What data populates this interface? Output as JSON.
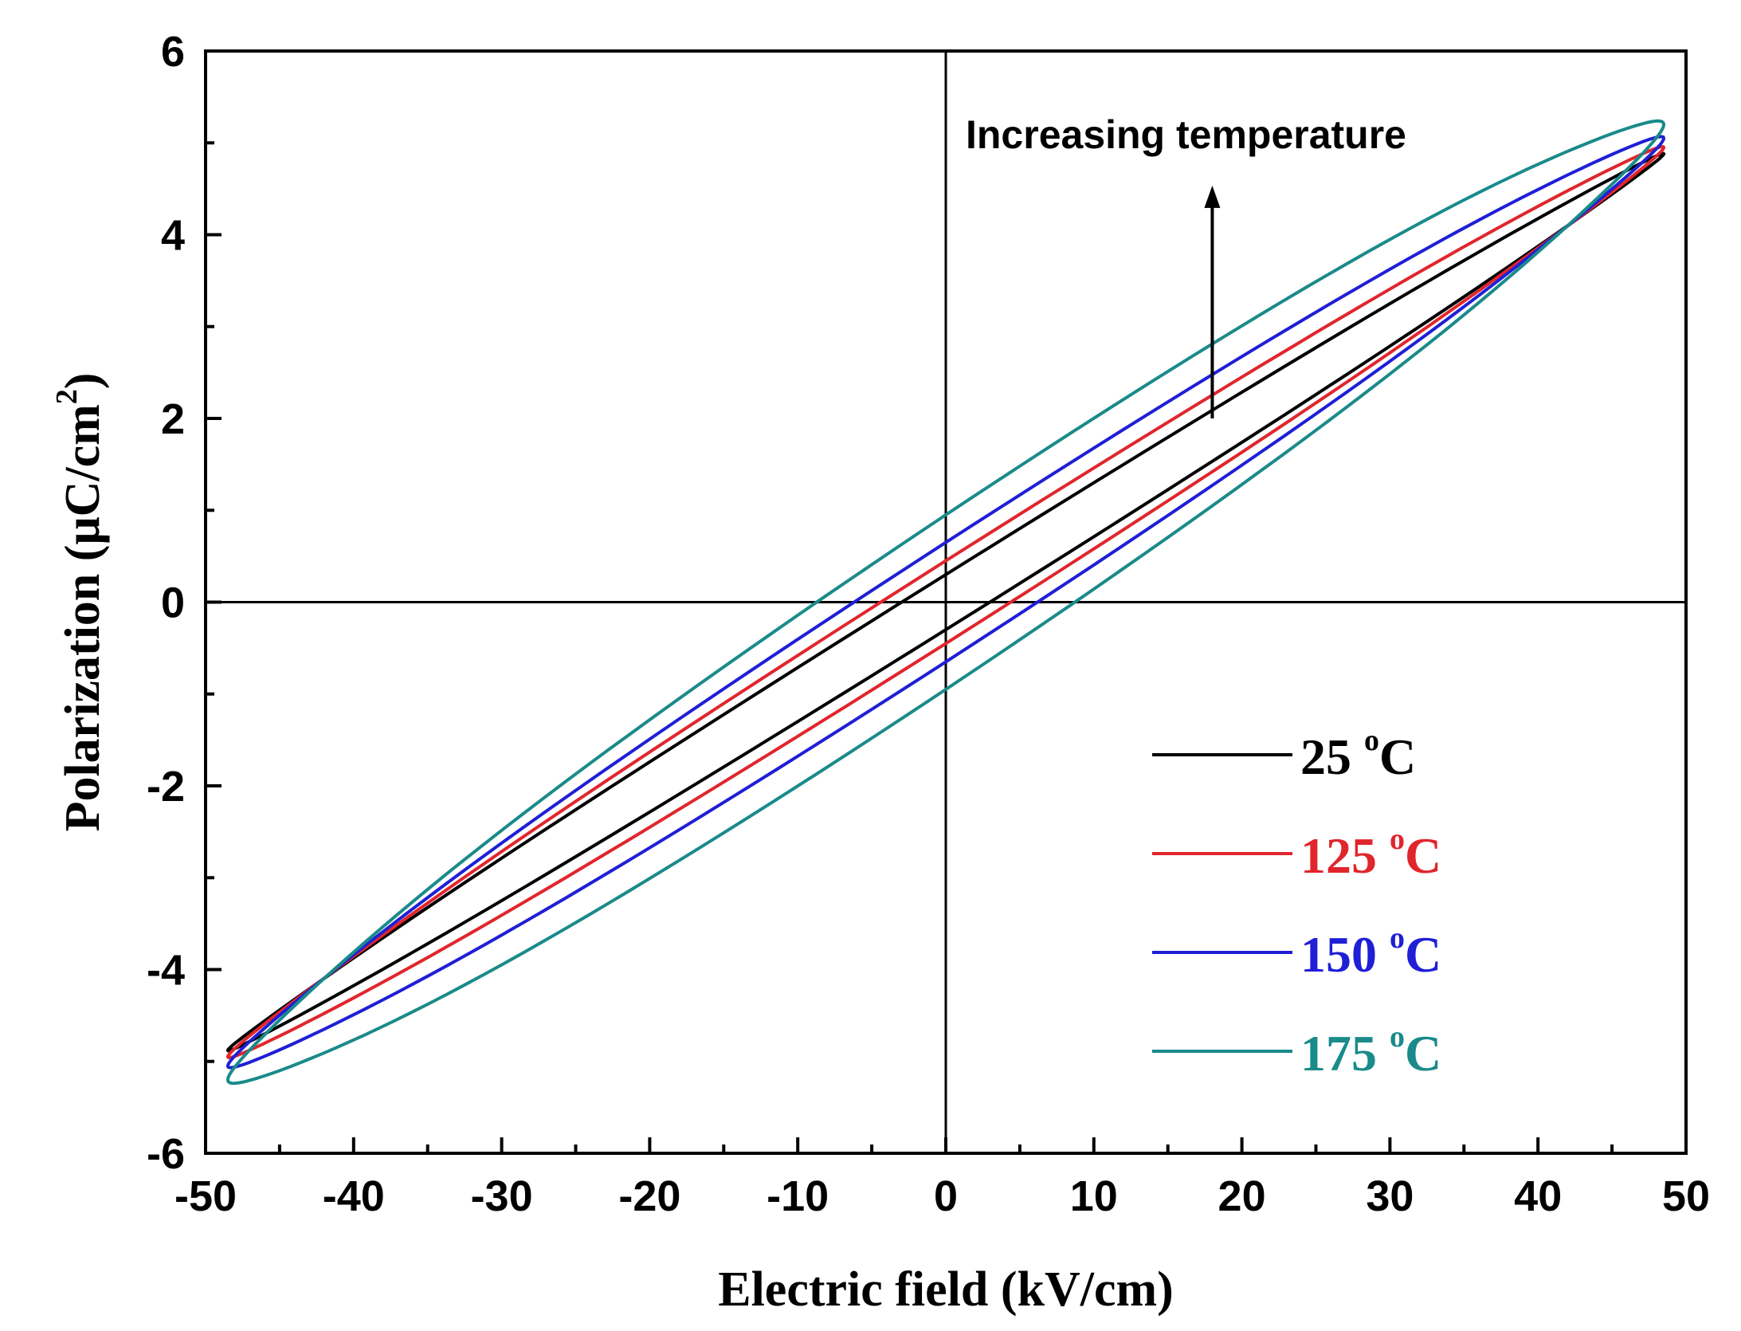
{
  "chart_data": {
    "type": "line",
    "title": "",
    "xlabel": "Electric field (kV/cm)",
    "ylabel_prefix": "Polarization (μC/cm",
    "ylabel_sup": "2",
    "ylabel_suffix": ")",
    "xlim": [
      -50,
      50
    ],
    "ylim": [
      -6,
      6
    ],
    "xticks": [
      -50,
      -40,
      -30,
      -20,
      -10,
      0,
      10,
      20,
      30,
      40,
      50
    ],
    "yticks": [
      -6,
      -4,
      -2,
      0,
      2,
      4,
      6
    ],
    "xtick_labels": [
      "-50",
      "-40",
      "-30",
      "-20",
      "-10",
      "0",
      "10",
      "20",
      "30",
      "40",
      "50"
    ],
    "ytick_labels": [
      "-6",
      "-4",
      "-2",
      "0",
      "2",
      "4",
      "6"
    ],
    "x_zero_line": true,
    "y_zero_line": true,
    "annotation": {
      "text": "Increasing temperature",
      "arrow_from": [
        18,
        2.0
      ],
      "arrow_to": [
        18,
        4.5
      ]
    },
    "legend_position": "lower-right",
    "series": [
      {
        "name": "25",
        "label_num": "25 ",
        "label_sup": "o",
        "label_unit": "C",
        "color": "#000000",
        "e_max": 48.5,
        "p_max": 4.88,
        "remanent": 0.3,
        "coercive": 2.8
      },
      {
        "name": "125",
        "label_num": "125 ",
        "label_sup": "o",
        "label_unit": "C",
        "color": "#e0262c",
        "e_max": 48.5,
        "p_max": 4.95,
        "remanent": 0.45,
        "coercive": 4.5
      },
      {
        "name": "150",
        "label_num": "150 ",
        "label_sup": "o",
        "label_unit": "C",
        "color": "#1f1fd6",
        "e_max": 48.5,
        "p_max": 5.05,
        "remanent": 0.65,
        "coercive": 6.5
      },
      {
        "name": "175",
        "label_num": "175 ",
        "label_sup": "o",
        "label_unit": "C",
        "color": "#1a8a8a",
        "e_max": 48.5,
        "p_max": 5.2,
        "remanent": 0.95,
        "coercive": 9.5
      }
    ]
  }
}
